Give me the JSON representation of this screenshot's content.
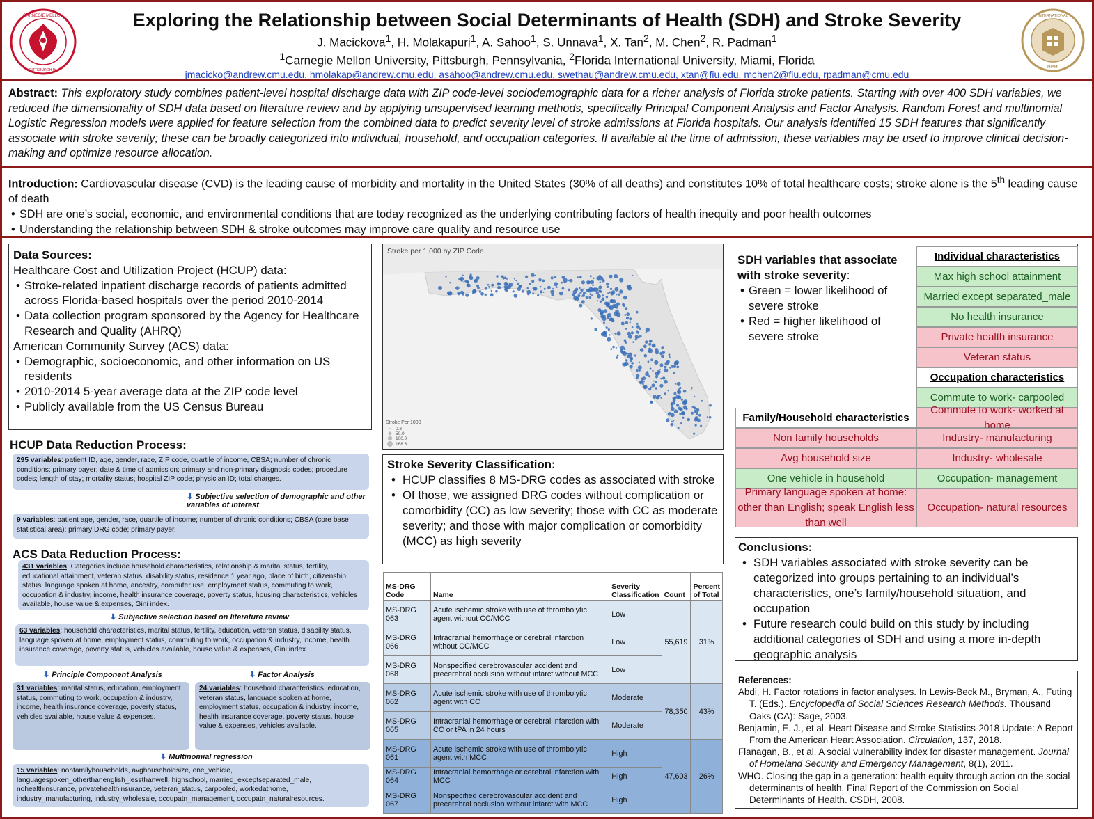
{
  "header": {
    "title": "Exploring the Relationship between Social Determinants of Health (SDH) and Stroke Severity",
    "authors": [
      {
        "name": "J. Macickova",
        "sup": "1"
      },
      {
        "name": "H. Molakapuri",
        "sup": "1"
      },
      {
        "name": "A. Sahoo",
        "sup": "1"
      },
      {
        "name": "S. Unnava",
        "sup": "1"
      },
      {
        "name": "X. Tan",
        "sup": "2"
      },
      {
        "name": "M. Chen",
        "sup": "2"
      },
      {
        "name": "R. Padman",
        "sup": "1"
      }
    ],
    "affil1_sup": "1",
    "affil1": "Carnegie Mellon University, Pittsburgh, Pennsylvania, ",
    "affil2_sup": "2",
    "affil2": "Florida International University, Miami, Florida",
    "emails": [
      "jmacicko@andrew.cmu.edu",
      "hmolakap@andrew.cmu.edu",
      "asahoo@andrew.cmu.edu",
      "swethau@andrew.cmu.edu",
      "xtan@fiu.edu",
      "mchen2@fiu.edu",
      "rpadman@cmu.edu"
    ],
    "logo_left_text": "CARNEGIE MELLON UNIVERSITY · PITTSBURGH PENNSYLVANIA 1900",
    "logo_right_text": "FLORIDA INTERNATIONAL UNIVERSITY · MIAMI"
  },
  "abstract": {
    "label": "Abstract:",
    "text": "This exploratory study combines patient-level hospital discharge data with ZIP code-level sociodemographic data for a richer analysis of Florida stroke patients. Starting with over 400 SDH variables, we reduced the dimensionality of SDH data based on literature review and by applying unsupervised learning methods, specifically Principal Component Analysis and Factor Analysis. Random Forest and multinomial Logistic Regression models were applied for feature selection from the combined data to predict severity level of stroke admissions at Florida hospitals. Our analysis identified 15 SDH features that significantly associate with stroke severity; these can be broadly categorized into individual, household, and occupation categories. If available at the time of admission, these variables may be used to improve clinical decision-making and optimize resource allocation."
  },
  "intro": {
    "label": "Introduction:",
    "text": "Cardiovascular disease (CVD) is the leading cause of morbidity and mortality in the United States (30% of all deaths) and constitutes 10% of total healthcare costs; stroke alone is the 5",
    "sup": "th",
    "text_end": " leading cause of death",
    "bullets": [
      "SDH are one’s social, economic, and environmental conditions that are today recognized as the underlying contributing factors of health inequity and poor health outcomes",
      "Understanding the relationship between SDH & stroke outcomes may improve care quality and resource use"
    ]
  },
  "data_sources": {
    "title": "Data Sources:",
    "hcup_heading": "Healthcare Cost and Utilization Project (HCUP) data:",
    "hcup_bullets": [
      "Stroke-related inpatient discharge records of patients admitted across Florida-based hospitals over the period 2010-2014",
      "Data collection program sponsored by the Agency for Healthcare Research and Quality (AHRQ)"
    ],
    "acs_heading": "American Community Survey (ACS) data:",
    "acs_bullets": [
      "Demographic, socioeconomic, and other information on US residents",
      "2010-2014 5-year average data at the ZIP code level",
      "Publicly available from the US Census Bureau"
    ]
  },
  "hcup_process": {
    "title": "HCUP Data Reduction Process:",
    "box1_head": "295 variables",
    "box1_text": ": patient ID, age, gender, race, ZIP code, quartile of income, CBSA; number of chronic conditions; primary payer; date & time of admission; primary and non-primary diagnosis codes; procedure codes; length of stay; mortality status; hospital ZIP code; physician ID; total charges.",
    "arrow1": "Subjective selection of demographic and other variables of interest",
    "box2_head": "9 variables",
    "box2_text": ": patient age, gender, race, quartile of income; number of chronic conditions; CBSA (core base statistical area); primary DRG code; primary payer."
  },
  "acs_process": {
    "title": "ACS Data Reduction Process:",
    "box1_head": "431 variables",
    "box1_text": ": Categories include household characteristics, relationship & marital status, fertility, educational attainment, veteran status, disability status, residence 1 year ago, place of birth, citizenship status, language spoken at home, ancestry, computer use, employment status, commuting to work, occupation & industry, income, health insurance coverage, poverty status, housing characteristics, vehicles available, house value & expenses, Gini index.",
    "arrow1": "Subjective selection based on literature review",
    "box2_head": "63 variables",
    "box2_text": ": household characteristics, marital status, fertility, education, veteran status, disability status, language spoken at home, employment status, commuting to work, occupation & industry, income, health insurance coverage, poverty status, vehicles available, house value & expenses, Gini index.",
    "arrow_pca": "Principle Component Analysis",
    "arrow_fa": "Factor Analysis",
    "box_pca_head": "31 variables",
    "box_pca_text": ": marital status, education, employment status, commuting to work, occupation & industry, income, health insurance coverage, poverty status, vehicles available, house value & expenses.",
    "box_fa_head": "24 variables",
    "box_fa_text": ": household characteristics, education, veteran status, language spoken at home, employment status, occupation & industry, income, health insurance coverage, poverty status, house value & expenses, vehicles available.",
    "arrow_mr": "Multinomial regression",
    "box3_head": "15 variables",
    "box3_text": ": nonfamilyhouseholds, avghouseholdsize, one_vehicle, languagespoken_otherthanenglish_lessthanwell, highschool, married_exceptseparated_male, nohealthinsurance, privatehealthinsurance, veteran_status, carpooled, workedathome, industry_manufacturing, industry_wholesale, occupatn_management, occupatn_naturalresources."
  },
  "map": {
    "title": "Stroke per 1,000 by ZIP Code",
    "legend_title": "Stroke Per 1000",
    "legend_items": [
      "0.3",
      "50.0",
      "100.0",
      "168.3"
    ],
    "dot_color": "#3a6fb8"
  },
  "severity": {
    "title": "Stroke Severity Classification:",
    "bullets": [
      "HCUP classifies 8 MS-DRG codes as associated with stroke",
      "Of those, we assigned DRG codes without complication or comorbidity (CC) as low severity; those with CC as moderate severity; and those with major complication or comorbidity (MCC) as high severity"
    ]
  },
  "drg_table": {
    "headers": [
      "MS-DRG Code",
      "Name",
      "Severity Classification",
      "Count",
      "Percent of Total"
    ],
    "rows": [
      {
        "code": "MS-DRG 063",
        "name": "Acute ischemic stroke with use of thrombolytic agent without CC/MCC",
        "severity": "Low"
      },
      {
        "code": "MS-DRG 066",
        "name": "Intracranial hemorrhage or cerebral infarction without CC/MCC",
        "severity": "Low"
      },
      {
        "code": "MS-DRG 068",
        "name": "Nonspecified cerebrovascular accident and precerebral occlusion without infarct without MCC",
        "severity": "Low"
      },
      {
        "code": "MS-DRG 062",
        "name": "Acute ischemic stroke with use of thrombolytic agent with CC",
        "severity": "Moderate"
      },
      {
        "code": "MS-DRG 065",
        "name": "Intracranial hemorrhage or cerebral infarction with CC or tPA in 24 hours",
        "severity": "Moderate"
      },
      {
        "code": "MS-DRG 061",
        "name": "Acute ischemic stroke with use of thrombolytic agent with MCC",
        "severity": "High"
      },
      {
        "code": "MS-DRG 064",
        "name": "Intracranial hemorrhage or cerebral infarction with MCC",
        "severity": "High"
      },
      {
        "code": "MS-DRG 067",
        "name": "Nonspecified cerebrovascular accident and precerebral occlusion without infarct with MCC",
        "severity": "High"
      }
    ],
    "groups": [
      {
        "count": "55,619",
        "percent": "31%"
      },
      {
        "count": "78,350",
        "percent": "43%"
      },
      {
        "count": "47,603",
        "percent": "26%"
      }
    ]
  },
  "sdh": {
    "title": "SDH variables that associate with stroke severity",
    "colon": ":",
    "bullets": [
      "Green = lower likelihood of severe stroke",
      "Red = higher likelihood of severe stroke"
    ],
    "individual_header": "Individual characteristics",
    "individual": [
      {
        "label": "Max high school attainment",
        "color": "green"
      },
      {
        "label": "Married except separated_male",
        "color": "green"
      },
      {
        "label": "No health insurance",
        "color": "green"
      },
      {
        "label": "Private health insurance",
        "color": "red"
      },
      {
        "label": "Veteran status",
        "color": "red"
      }
    ],
    "occupation_header": "Occupation characteristics",
    "occupation": [
      {
        "label": "Commute to work- carpooled",
        "color": "green"
      },
      {
        "label": "Commute to work- worked at home",
        "color": "red"
      },
      {
        "label": "Industry- manufacturing",
        "color": "red"
      },
      {
        "label": "Industry- wholesale",
        "color": "red"
      },
      {
        "label": "Occupation- management",
        "color": "green"
      },
      {
        "label": "Occupation- natural resources",
        "color": "red"
      }
    ],
    "family_header": "Family/Household characteristics",
    "family": [
      {
        "label": "Non family households",
        "color": "red"
      },
      {
        "label": "Avg household size",
        "color": "red"
      },
      {
        "label": "One vehicle in household",
        "color": "green"
      },
      {
        "label": "Primary language spoken at home: other than English; speak English less than well",
        "color": "red"
      }
    ],
    "colors": {
      "green_bg": "#c8ecc8",
      "green_text": "#1e5f25",
      "red_bg": "#f5c3c9",
      "red_text": "#9b1020"
    }
  },
  "conclusions": {
    "title": "Conclusions:",
    "bullets": [
      "SDH variables associated with stroke severity can be categorized into groups pertaining to an individual’s characteristics, one’s family/household situation, and occupation",
      "Future research could build on this study by including additional categories of SDH and using a more in-depth geographic analysis"
    ]
  },
  "references": {
    "title": "References:",
    "items": [
      {
        "pre": "Abdi, H. Factor rotations in factor analyses. In Lewis-Beck M., Bryman, A., Futing T. (Eds.). ",
        "italic": "Encyclopedia of Social Sciences Research Methods.",
        "post": " Thousand Oaks (CA): Sage, 2003."
      },
      {
        "pre": "Benjamin, E. J., et al. Heart Disease and Stroke Statistics-2018 Update: A Report From the American Heart Association. ",
        "italic": "Circulation",
        "post": ", 137, 2018."
      },
      {
        "pre": "Flanagan, B., et al. A social vulnerability index for disaster management. ",
        "italic": "Journal of Homeland Security and Emergency Management",
        "post": ", 8(1), 2011."
      },
      {
        "pre": "WHO. Closing the gap in a generation: health equity through action on the social determinants of health. Final Report of the Commission on Social Determinants of Health. CSDH, 2008.",
        "italic": "",
        "post": ""
      }
    ]
  },
  "colors": {
    "accent": "#8b1a1a",
    "link": "#1c3fbf",
    "flow_box": "#c9d5ea"
  }
}
